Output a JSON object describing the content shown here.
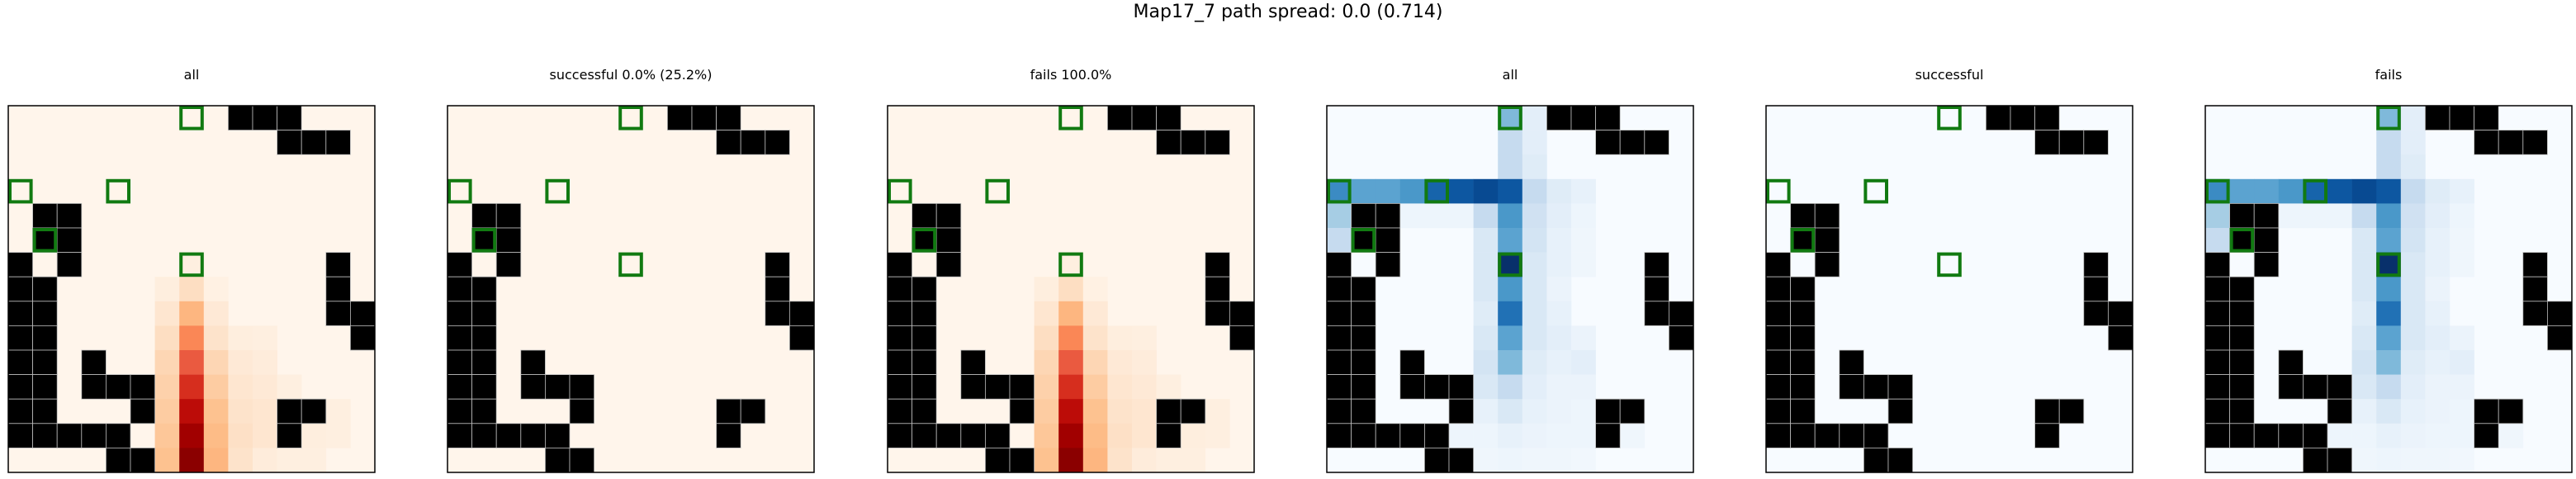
{
  "suptitle": "Map17_7 path spread: 0.0 (0.714)",
  "grid_size": 15,
  "colors": {
    "wall": "#000000",
    "wall_gridline": "#bbbbbb",
    "goal_marker": "#117a11",
    "frame": "#000000"
  },
  "colormaps": {
    "Oranges_like": [
      "#fff5eb",
      "#fee6ce",
      "#fdd0a2",
      "#fdae6b",
      "#fd8d3c",
      "#f16913",
      "#d94801",
      "#a63603",
      "#7f2704"
    ],
    "Reds_hot": [
      "#fff5eb",
      "#fde0c5",
      "#fdbb84",
      "#fc8d59",
      "#ef6548",
      "#d7301f",
      "#b30000",
      "#8b0000"
    ],
    "Blues": [
      "#f7fbff",
      "#deebf7",
      "#c6dbef",
      "#9ecae1",
      "#6baed6",
      "#4292c6",
      "#2171b5",
      "#08519c",
      "#08306b"
    ]
  },
  "walls": [
    [
      0,
      9
    ],
    [
      0,
      10
    ],
    [
      0,
      11
    ],
    [
      1,
      11
    ],
    [
      1,
      12
    ],
    [
      1,
      13
    ],
    [
      4,
      1
    ],
    [
      4,
      2
    ],
    [
      5,
      1
    ],
    [
      5,
      2
    ],
    [
      6,
      0
    ],
    [
      6,
      2
    ],
    [
      6,
      13
    ],
    [
      7,
      0
    ],
    [
      7,
      1
    ],
    [
      7,
      13
    ],
    [
      8,
      0
    ],
    [
      8,
      1
    ],
    [
      8,
      13
    ],
    [
      8,
      14
    ],
    [
      9,
      0
    ],
    [
      9,
      1
    ],
    [
      9,
      14
    ],
    [
      10,
      0
    ],
    [
      10,
      1
    ],
    [
      10,
      3
    ],
    [
      11,
      0
    ],
    [
      11,
      1
    ],
    [
      11,
      3
    ],
    [
      11,
      4
    ],
    [
      11,
      5
    ],
    [
      12,
      0
    ],
    [
      12,
      1
    ],
    [
      12,
      5
    ],
    [
      12,
      11
    ],
    [
      12,
      12
    ],
    [
      13,
      0
    ],
    [
      13,
      1
    ],
    [
      13,
      2
    ],
    [
      13,
      3
    ],
    [
      13,
      4
    ],
    [
      13,
      11
    ],
    [
      14,
      4
    ],
    [
      14,
      5
    ],
    [
      15,
      5
    ]
  ],
  "goals": [
    [
      0,
      7
    ],
    [
      3,
      0
    ],
    [
      3,
      4
    ],
    [
      5,
      1
    ],
    [
      6,
      7
    ]
  ],
  "chart_data": [
    {
      "type": "heatmap",
      "title": "all",
      "colormap": "Oranges",
      "cells": [
        [
          6,
          7,
          0.04
        ],
        [
          7,
          6,
          0.05
        ],
        [
          7,
          7,
          0.15
        ],
        [
          7,
          8,
          0.03
        ],
        [
          8,
          6,
          0.1
        ],
        [
          8,
          7,
          0.3
        ],
        [
          8,
          8,
          0.08
        ],
        [
          9,
          6,
          0.15
        ],
        [
          9,
          7,
          0.45
        ],
        [
          9,
          8,
          0.12
        ],
        [
          9,
          9,
          0.05
        ],
        [
          9,
          10,
          0.04
        ],
        [
          10,
          6,
          0.18
        ],
        [
          10,
          7,
          0.6
        ],
        [
          10,
          8,
          0.18
        ],
        [
          10,
          9,
          0.08
        ],
        [
          10,
          10,
          0.06
        ],
        [
          11,
          6,
          0.2
        ],
        [
          11,
          7,
          0.72
        ],
        [
          11,
          8,
          0.22
        ],
        [
          11,
          9,
          0.1
        ],
        [
          11,
          10,
          0.08
        ],
        [
          11,
          11,
          0.04
        ],
        [
          12,
          6,
          0.22
        ],
        [
          12,
          7,
          0.82
        ],
        [
          12,
          8,
          0.26
        ],
        [
          12,
          9,
          0.12
        ],
        [
          12,
          10,
          0.1
        ],
        [
          12,
          13,
          0.04
        ],
        [
          13,
          6,
          0.24
        ],
        [
          13,
          7,
          0.92
        ],
        [
          13,
          8,
          0.28
        ],
        [
          13,
          9,
          0.14
        ],
        [
          13,
          10,
          0.1
        ],
        [
          13,
          12,
          0.05
        ],
        [
          13,
          13,
          0.04
        ],
        [
          14,
          6,
          0.26
        ],
        [
          14,
          7,
          1.0
        ],
        [
          14,
          8,
          0.3
        ],
        [
          14,
          9,
          0.12
        ],
        [
          14,
          10,
          0.06
        ],
        [
          14,
          11,
          0.04
        ],
        [
          14,
          12,
          0.04
        ]
      ]
    },
    {
      "type": "heatmap",
      "title": "successful 0.0% (25.2%)",
      "colormap": "Oranges",
      "cells": []
    },
    {
      "type": "heatmap",
      "title": "fails 100.0%",
      "colormap": "Oranges",
      "cells": [
        [
          6,
          7,
          0.04
        ],
        [
          7,
          6,
          0.05
        ],
        [
          7,
          7,
          0.15
        ],
        [
          7,
          8,
          0.03
        ],
        [
          8,
          6,
          0.1
        ],
        [
          8,
          7,
          0.3
        ],
        [
          8,
          8,
          0.08
        ],
        [
          9,
          6,
          0.15
        ],
        [
          9,
          7,
          0.45
        ],
        [
          9,
          8,
          0.12
        ],
        [
          9,
          9,
          0.05
        ],
        [
          9,
          10,
          0.04
        ],
        [
          10,
          6,
          0.18
        ],
        [
          10,
          7,
          0.6
        ],
        [
          10,
          8,
          0.18
        ],
        [
          10,
          9,
          0.08
        ],
        [
          10,
          10,
          0.06
        ],
        [
          11,
          6,
          0.2
        ],
        [
          11,
          7,
          0.72
        ],
        [
          11,
          8,
          0.22
        ],
        [
          11,
          9,
          0.1
        ],
        [
          11,
          10,
          0.08
        ],
        [
          11,
          11,
          0.04
        ],
        [
          12,
          6,
          0.22
        ],
        [
          12,
          7,
          0.82
        ],
        [
          12,
          8,
          0.26
        ],
        [
          12,
          9,
          0.12
        ],
        [
          12,
          10,
          0.1
        ],
        [
          12,
          13,
          0.04
        ],
        [
          13,
          6,
          0.24
        ],
        [
          13,
          7,
          0.92
        ],
        [
          13,
          8,
          0.28
        ],
        [
          13,
          9,
          0.14
        ],
        [
          13,
          10,
          0.1
        ],
        [
          13,
          12,
          0.05
        ],
        [
          13,
          13,
          0.04
        ],
        [
          14,
          6,
          0.26
        ],
        [
          14,
          7,
          1.0
        ],
        [
          14,
          8,
          0.3
        ],
        [
          14,
          9,
          0.12
        ],
        [
          14,
          10,
          0.06
        ],
        [
          14,
          11,
          0.04
        ],
        [
          14,
          12,
          0.04
        ]
      ]
    },
    {
      "type": "heatmap",
      "title": "all",
      "colormap": "Blues",
      "cells": [
        [
          0,
          7,
          0.45
        ],
        [
          0,
          8,
          0.1
        ],
        [
          1,
          7,
          0.25
        ],
        [
          1,
          8,
          0.1
        ],
        [
          2,
          7,
          0.25
        ],
        [
          2,
          8,
          0.12
        ],
        [
          3,
          0,
          0.65
        ],
        [
          3,
          1,
          0.55
        ],
        [
          3,
          2,
          0.55
        ],
        [
          3,
          3,
          0.6
        ],
        [
          3,
          4,
          0.8
        ],
        [
          3,
          5,
          0.85
        ],
        [
          3,
          6,
          0.9
        ],
        [
          3,
          7,
          0.85
        ],
        [
          3,
          8,
          0.25
        ],
        [
          3,
          9,
          0.12
        ],
        [
          3,
          10,
          0.08
        ],
        [
          4,
          0,
          0.35
        ],
        [
          4,
          3,
          0.05
        ],
        [
          4,
          4,
          0.05
        ],
        [
          4,
          5,
          0.05
        ],
        [
          4,
          6,
          0.25
        ],
        [
          4,
          7,
          0.6
        ],
        [
          4,
          8,
          0.2
        ],
        [
          4,
          9,
          0.1
        ],
        [
          4,
          10,
          0.05
        ],
        [
          5,
          0,
          0.25
        ],
        [
          5,
          1,
          0.4
        ],
        [
          5,
          6,
          0.15
        ],
        [
          5,
          7,
          0.55
        ],
        [
          5,
          8,
          0.18
        ],
        [
          5,
          9,
          0.08
        ],
        [
          5,
          10,
          0.04
        ],
        [
          6,
          6,
          0.15
        ],
        [
          6,
          7,
          1.0
        ],
        [
          6,
          8,
          0.15
        ],
        [
          6,
          9,
          0.08
        ],
        [
          6,
          10,
          0.04
        ],
        [
          7,
          6,
          0.15
        ],
        [
          7,
          7,
          0.6
        ],
        [
          7,
          8,
          0.15
        ],
        [
          7,
          9,
          0.06
        ],
        [
          8,
          6,
          0.12
        ],
        [
          8,
          7,
          0.75
        ],
        [
          8,
          8,
          0.15
        ],
        [
          8,
          9,
          0.08
        ],
        [
          9,
          6,
          0.15
        ],
        [
          9,
          7,
          0.55
        ],
        [
          9,
          8,
          0.15
        ],
        [
          9,
          9,
          0.1
        ],
        [
          9,
          10,
          0.06
        ],
        [
          10,
          6,
          0.18
        ],
        [
          10,
          7,
          0.45
        ],
        [
          10,
          8,
          0.12
        ],
        [
          10,
          9,
          0.08
        ],
        [
          10,
          10,
          0.1
        ],
        [
          11,
          6,
          0.15
        ],
        [
          11,
          7,
          0.25
        ],
        [
          11,
          8,
          0.1
        ],
        [
          11,
          9,
          0.06
        ],
        [
          11,
          10,
          0.06
        ],
        [
          12,
          6,
          0.08
        ],
        [
          12,
          7,
          0.15
        ],
        [
          12,
          8,
          0.08
        ],
        [
          12,
          9,
          0.06
        ],
        [
          12,
          10,
          0.05
        ],
        [
          13,
          5,
          0.05
        ],
        [
          13,
          6,
          0.05
        ],
        [
          13,
          7,
          0.08
        ],
        [
          13,
          8,
          0.06
        ],
        [
          13,
          9,
          0.05
        ],
        [
          13,
          10,
          0.05
        ],
        [
          13,
          12,
          0.04
        ],
        [
          14,
          6,
          0.04
        ],
        [
          14,
          7,
          0.05
        ],
        [
          14,
          8,
          0.04
        ],
        [
          14,
          9,
          0.04
        ],
        [
          14,
          10,
          0.03
        ]
      ]
    },
    {
      "type": "heatmap",
      "title": "successful",
      "colormap": "Blues",
      "cells": []
    },
    {
      "type": "heatmap",
      "title": "fails",
      "colormap": "Blues",
      "cells": [
        [
          0,
          7,
          0.45
        ],
        [
          0,
          8,
          0.1
        ],
        [
          1,
          7,
          0.25
        ],
        [
          1,
          8,
          0.1
        ],
        [
          2,
          7,
          0.25
        ],
        [
          2,
          8,
          0.12
        ],
        [
          3,
          0,
          0.65
        ],
        [
          3,
          1,
          0.55
        ],
        [
          3,
          2,
          0.55
        ],
        [
          3,
          3,
          0.6
        ],
        [
          3,
          4,
          0.8
        ],
        [
          3,
          5,
          0.85
        ],
        [
          3,
          6,
          0.9
        ],
        [
          3,
          7,
          0.85
        ],
        [
          3,
          8,
          0.25
        ],
        [
          3,
          9,
          0.12
        ],
        [
          3,
          10,
          0.08
        ],
        [
          4,
          0,
          0.35
        ],
        [
          4,
          3,
          0.05
        ],
        [
          4,
          4,
          0.05
        ],
        [
          4,
          5,
          0.05
        ],
        [
          4,
          6,
          0.25
        ],
        [
          4,
          7,
          0.6
        ],
        [
          4,
          8,
          0.2
        ],
        [
          4,
          9,
          0.1
        ],
        [
          4,
          10,
          0.05
        ],
        [
          5,
          0,
          0.25
        ],
        [
          5,
          1,
          0.4
        ],
        [
          5,
          6,
          0.15
        ],
        [
          5,
          7,
          0.55
        ],
        [
          5,
          8,
          0.18
        ],
        [
          5,
          9,
          0.08
        ],
        [
          5,
          10,
          0.04
        ],
        [
          6,
          6,
          0.15
        ],
        [
          6,
          7,
          1.0
        ],
        [
          6,
          8,
          0.15
        ],
        [
          6,
          9,
          0.08
        ],
        [
          6,
          10,
          0.04
        ],
        [
          7,
          6,
          0.15
        ],
        [
          7,
          7,
          0.6
        ],
        [
          7,
          8,
          0.15
        ],
        [
          7,
          9,
          0.06
        ],
        [
          8,
          6,
          0.12
        ],
        [
          8,
          7,
          0.75
        ],
        [
          8,
          8,
          0.15
        ],
        [
          8,
          9,
          0.08
        ],
        [
          9,
          6,
          0.15
        ],
        [
          9,
          7,
          0.55
        ],
        [
          9,
          8,
          0.15
        ],
        [
          9,
          9,
          0.1
        ],
        [
          9,
          10,
          0.06
        ],
        [
          10,
          6,
          0.18
        ],
        [
          10,
          7,
          0.45
        ],
        [
          10,
          8,
          0.12
        ],
        [
          10,
          9,
          0.08
        ],
        [
          10,
          10,
          0.1
        ],
        [
          11,
          6,
          0.15
        ],
        [
          11,
          7,
          0.25
        ],
        [
          11,
          8,
          0.1
        ],
        [
          11,
          9,
          0.06
        ],
        [
          11,
          10,
          0.06
        ],
        [
          12,
          6,
          0.08
        ],
        [
          12,
          7,
          0.15
        ],
        [
          12,
          8,
          0.08
        ],
        [
          12,
          9,
          0.06
        ],
        [
          12,
          10,
          0.05
        ],
        [
          13,
          5,
          0.05
        ],
        [
          13,
          6,
          0.05
        ],
        [
          13,
          7,
          0.08
        ],
        [
          13,
          8,
          0.06
        ],
        [
          13,
          9,
          0.05
        ],
        [
          13,
          10,
          0.05
        ],
        [
          13,
          12,
          0.04
        ],
        [
          14,
          6,
          0.04
        ],
        [
          14,
          7,
          0.05
        ],
        [
          14,
          8,
          0.04
        ],
        [
          14,
          9,
          0.04
        ],
        [
          14,
          10,
          0.03
        ]
      ]
    }
  ]
}
